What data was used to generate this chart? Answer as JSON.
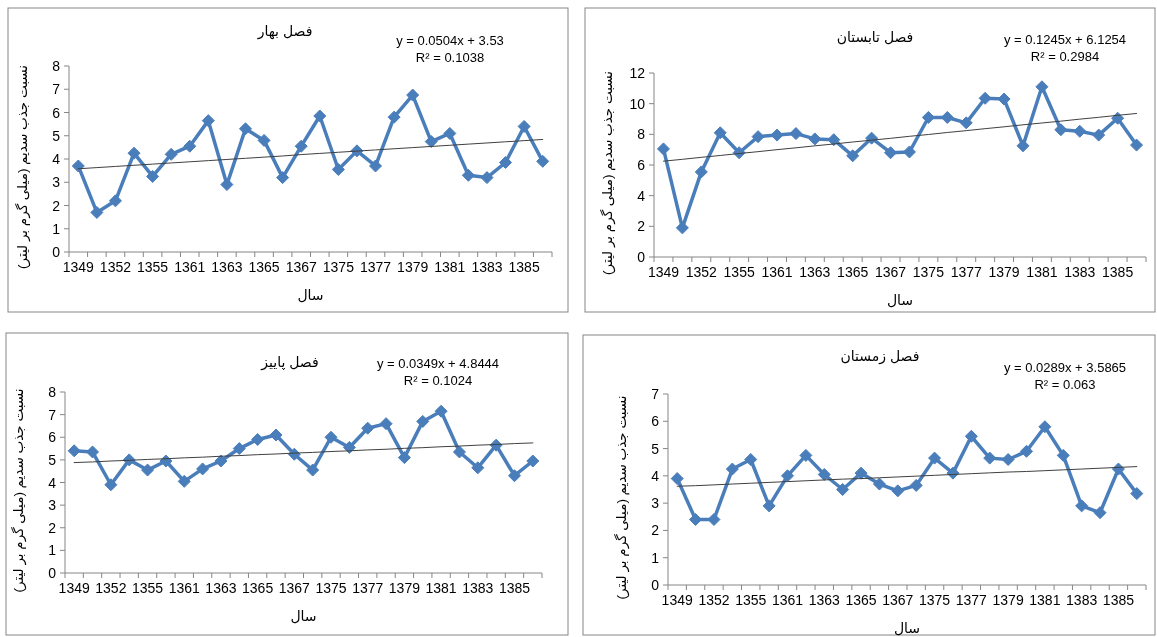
{
  "chart_data": [
    {
      "type": "line",
      "title": "فصل بهار",
      "xlabel": "سال",
      "ylabel": "نسبت جذب سدیم (میلی گرم بر لیتر)",
      "categories": [
        "1349",
        null,
        "1352",
        null,
        "1355",
        null,
        "1361",
        null,
        "1363",
        null,
        "1365",
        null,
        "1367",
        null,
        "1375",
        null,
        "1377",
        null,
        "1379",
        null,
        "1381",
        null,
        "1383",
        null,
        "1385",
        null
      ],
      "series": [
        {
          "color": "#4a7ebb",
          "marker": "diamond",
          "values": [
            3.7,
            1.7,
            2.2,
            4.25,
            3.25,
            4.2,
            4.55,
            5.65,
            2.9,
            5.3,
            4.8,
            3.2,
            4.55,
            5.85,
            3.55,
            4.35,
            3.7,
            5.8,
            6.75,
            4.75,
            5.1,
            3.3,
            3.2,
            3.85,
            5.4,
            3.9
          ]
        },
        {
          "type": "line",
          "color": "#404040",
          "marker": "none",
          "values": [
            3.58,
            3.63,
            3.68,
            3.73,
            3.78,
            3.83,
            3.88,
            3.93,
            3.98,
            4.03,
            4.08,
            4.13,
            4.19,
            4.24,
            4.29,
            4.34,
            4.39,
            4.44,
            4.49,
            4.54,
            4.59,
            4.64,
            4.69,
            4.74,
            4.79,
            4.84
          ]
        }
      ],
      "ylim": [
        0,
        8
      ],
      "yticks": [
        0,
        1,
        2,
        3,
        4,
        5,
        6,
        7,
        8
      ],
      "grid": false,
      "annotations": [
        "y = 0.0504x + 3.53",
        "R² = 0.1038"
      ]
    },
    {
      "type": "line",
      "title": "فصل  تابستان",
      "xlabel": "سال",
      "ylabel": "نسبت جذب سدیم (میلی گرم بر لیتر)",
      "categories": [
        "1349",
        null,
        "1352",
        null,
        "1355",
        null,
        "1361",
        null,
        "1363",
        null,
        "1365",
        null,
        "1367",
        null,
        "1375",
        null,
        "1377",
        null,
        "1379",
        null,
        "1381",
        null,
        "1383",
        null,
        "1385",
        null
      ],
      "series": [
        {
          "color": "#4a7ebb",
          "marker": "diamond",
          "values": [
            7.05,
            1.9,
            5.55,
            8.1,
            6.8,
            7.85,
            7.95,
            8.05,
            7.7,
            7.65,
            6.6,
            7.75,
            6.8,
            6.85,
            9.1,
            9.1,
            8.75,
            10.35,
            10.3,
            7.25,
            11.1,
            8.3,
            8.2,
            7.95,
            9.05,
            7.3
          ]
        },
        {
          "type": "line",
          "color": "#404040",
          "marker": "none",
          "values": [
            6.25,
            6.37,
            6.5,
            6.62,
            6.75,
            6.87,
            7.0,
            7.12,
            7.25,
            7.37,
            7.5,
            7.62,
            7.74,
            7.87,
            7.99,
            8.12,
            8.24,
            8.37,
            8.49,
            8.62,
            8.74,
            8.86,
            8.99,
            9.11,
            9.24,
            9.36
          ]
        }
      ],
      "ylim": [
        0,
        12
      ],
      "yticks": [
        0,
        2,
        4,
        6,
        8,
        10,
        12
      ],
      "grid": false,
      "annotations": [
        "y = 0.1245x + 6.1254",
        "R² = 0.2984"
      ]
    },
    {
      "type": "line",
      "title": "فصل  پاییز",
      "xlabel": "سال",
      "ylabel": "نسبت جذب سدیم (میلی گرم بر لیتر)",
      "categories": [
        "1349",
        null,
        "1352",
        null,
        "1355",
        null,
        "1361",
        null,
        "1363",
        null,
        "1365",
        null,
        "1367",
        null,
        "1375",
        null,
        "1377",
        null,
        "1379",
        null,
        "1381",
        null,
        "1383",
        null,
        "1385",
        null
      ],
      "series": [
        {
          "color": "#4a7ebb",
          "marker": "diamond",
          "values": [
            5.4,
            5.35,
            3.9,
            5.0,
            4.55,
            4.95,
            4.05,
            4.6,
            4.95,
            5.5,
            5.9,
            6.1,
            5.25,
            4.55,
            6.0,
            5.55,
            6.4,
            6.6,
            5.1,
            6.7,
            7.15,
            5.35,
            4.65,
            5.65,
            4.3,
            4.95
          ]
        },
        {
          "type": "line",
          "color": "#404040",
          "marker": "none",
          "values": [
            4.88,
            4.91,
            4.95,
            4.98,
            5.02,
            5.05,
            5.09,
            5.12,
            5.16,
            5.19,
            5.23,
            5.26,
            5.3,
            5.33,
            5.37,
            5.4,
            5.44,
            5.47,
            5.51,
            5.54,
            5.58,
            5.61,
            5.65,
            5.68,
            5.72,
            5.75
          ]
        }
      ],
      "ylim": [
        0,
        8
      ],
      "yticks": [
        0,
        1,
        2,
        3,
        4,
        5,
        6,
        7,
        8
      ],
      "grid": false,
      "annotations": [
        "y = 0.0349x + 4.8444",
        "R² = 0.1024"
      ]
    },
    {
      "type": "line",
      "title": "فصل زمستان",
      "xlabel": "سال",
      "ylabel": "نسبت جذب سدیم (میلی گرم بر لیتر)",
      "categories": [
        "1349",
        null,
        "1352",
        null,
        "1355",
        null,
        "1361",
        null,
        "1363",
        null,
        "1365",
        null,
        "1367",
        null,
        "1375",
        null,
        "1377",
        null,
        "1379",
        null,
        "1381",
        null,
        "1383",
        null,
        "1385",
        null
      ],
      "series": [
        {
          "color": "#4a7ebb",
          "marker": "diamond",
          "values": [
            3.9,
            2.4,
            2.4,
            4.25,
            4.6,
            2.9,
            4.0,
            4.75,
            4.05,
            3.5,
            4.1,
            3.7,
            3.45,
            3.65,
            4.65,
            4.1,
            5.45,
            4.65,
            4.6,
            4.9,
            5.8,
            4.75,
            2.9,
            2.65,
            4.25,
            3.35
          ]
        },
        {
          "type": "line",
          "color": "#404040",
          "marker": "none",
          "values": [
            3.62,
            3.64,
            3.67,
            3.7,
            3.73,
            3.76,
            3.79,
            3.82,
            3.85,
            3.88,
            3.9,
            3.93,
            3.96,
            3.99,
            4.02,
            4.05,
            4.08,
            4.11,
            4.14,
            4.16,
            4.19,
            4.22,
            4.25,
            4.28,
            4.31,
            4.34
          ]
        }
      ],
      "ylim": [
        0,
        7
      ],
      "yticks": [
        0,
        1,
        2,
        3,
        4,
        5,
        6,
        7
      ],
      "grid": false,
      "annotations": [
        "y = 0.0289x + 3.5865",
        "R² = 0.063"
      ]
    }
  ]
}
